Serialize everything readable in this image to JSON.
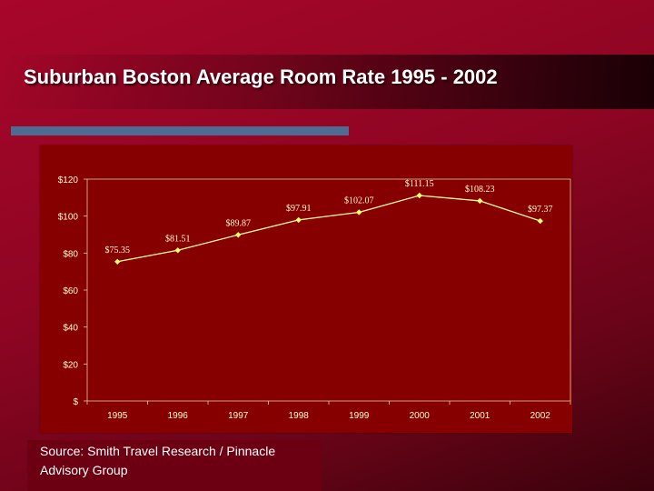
{
  "slide": {
    "title": "Suburban Boston Average Room Rate 1995 - 2002",
    "source": "Source: Smith Travel Research / Pinnacle Advisory Group"
  },
  "colors": {
    "background": "#8e0522",
    "plot_area": "#870000",
    "line": "#ffff99",
    "marker": "#ffff66",
    "axis_text": "#ffffcc",
    "accent_rule": "#4d6b93"
  },
  "chart_data": {
    "type": "line",
    "title": "",
    "xlabel": "",
    "ylabel": "",
    "categories": [
      "1995",
      "1996",
      "1997",
      "1998",
      "1999",
      "2000",
      "2001",
      "2002"
    ],
    "series": [
      {
        "values": [
          75.35,
          81.51,
          89.87,
          97.91,
          102.07,
          111.15,
          108.23,
          97.37
        ],
        "data_labels": [
          "$75.35",
          "$81.51",
          "$89.87",
          "$97.91",
          "$102.07",
          "$111.15",
          "$108.23",
          "$97.37"
        ]
      }
    ],
    "ylim": [
      0,
      120
    ],
    "y_ticks": [
      0,
      20,
      40,
      60,
      80,
      100,
      120
    ],
    "y_tick_labels": [
      "$",
      "$20",
      "$40",
      "$60",
      "$80",
      "$100",
      "$120"
    ],
    "grid": false,
    "legend": "none"
  }
}
